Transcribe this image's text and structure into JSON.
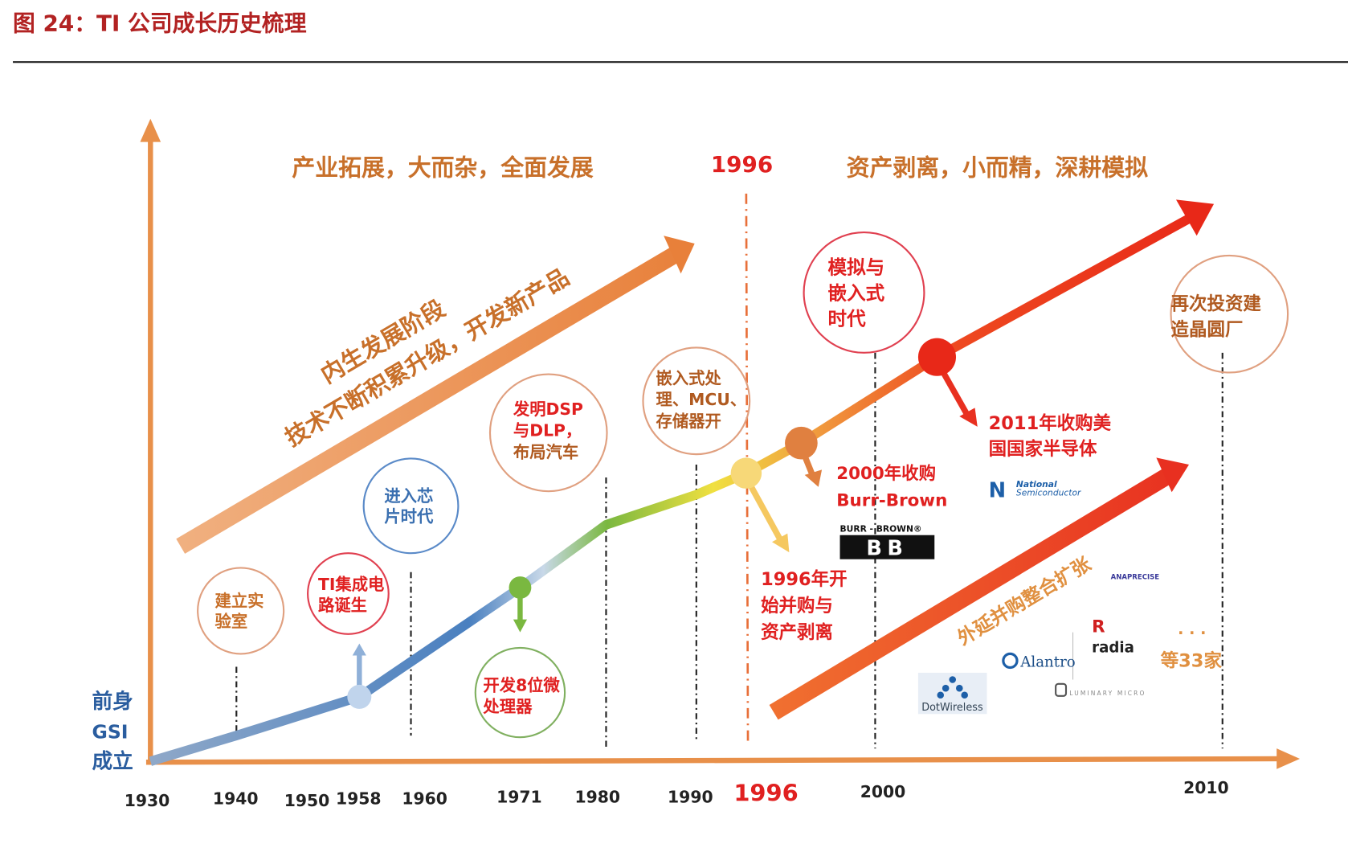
{
  "caption": "图 24：TI 公司成长历史梳理",
  "headers": {
    "left": "产业拓展，大而杂，全面发展",
    "divider_year": "1996",
    "right": "资产剥离，小而精，深耕模拟"
  },
  "phase_arrow": {
    "line1": "内生发展阶段",
    "line2": "技术不断积累升级，开发新产品"
  },
  "expansion_arrow": "外延并购整合扩张",
  "origin_label": [
    "前身",
    "GSI",
    "成立"
  ],
  "milestones": [
    {
      "lines": [
        "建立实",
        "验室"
      ],
      "color": "#c8702a"
    },
    {
      "lines": [
        "TI集成电",
        "路诞生"
      ],
      "color": "#e02020"
    },
    {
      "lines": [
        "进入芯",
        "片时代"
      ],
      "color": "#3a6fb0"
    },
    {
      "lines": [
        "开发8位微",
        "处理器"
      ],
      "color": "#e02020"
    },
    {
      "lines": [
        "发明DSP",
        "与DLP，",
        "布局汽车"
      ],
      "color": "#e02020"
    },
    {
      "lines": [
        "嵌入式处",
        "理、MCU、",
        "存储器开"
      ],
      "color": "#b05a20"
    },
    {
      "lines": [
        "模拟与",
        "嵌入式",
        "时代"
      ],
      "color": "#e02020"
    },
    {
      "lines": [
        "再次投资建",
        "造晶圆厂"
      ],
      "color": "#b05a20"
    }
  ],
  "annotations": {
    "burr_brown": [
      "2000年收购",
      "Burr-Brown"
    ],
    "mna_1996": [
      "1996年开",
      "始并购与",
      "资产剥离"
    ],
    "national_2011": [
      "2011年收购美",
      "国国家半导体"
    ],
    "others": "等33家",
    "ellipsis": "· · ·"
  },
  "logos": {
    "burr_brown_top": "BURR - BROWN®",
    "burr_brown_mark": "BB",
    "national": [
      "National",
      "Semiconductor"
    ],
    "alantro": "Alantro",
    "radia": "radia",
    "dotwireless": "DotWireless",
    "luminary": "LUMINARY MICRO",
    "anaprecise": "ANAPRECISE"
  },
  "x_axis_years": [
    "1930",
    "1940",
    "1950",
    "1958",
    "1960",
    "1971",
    "1980",
    "1990",
    "1996",
    "2000",
    "2010"
  ],
  "colors": {
    "caption": "#b22222",
    "axis": "#e8904a",
    "accent_red": "#e02020",
    "origin_blue": "#2a5d9f"
  }
}
